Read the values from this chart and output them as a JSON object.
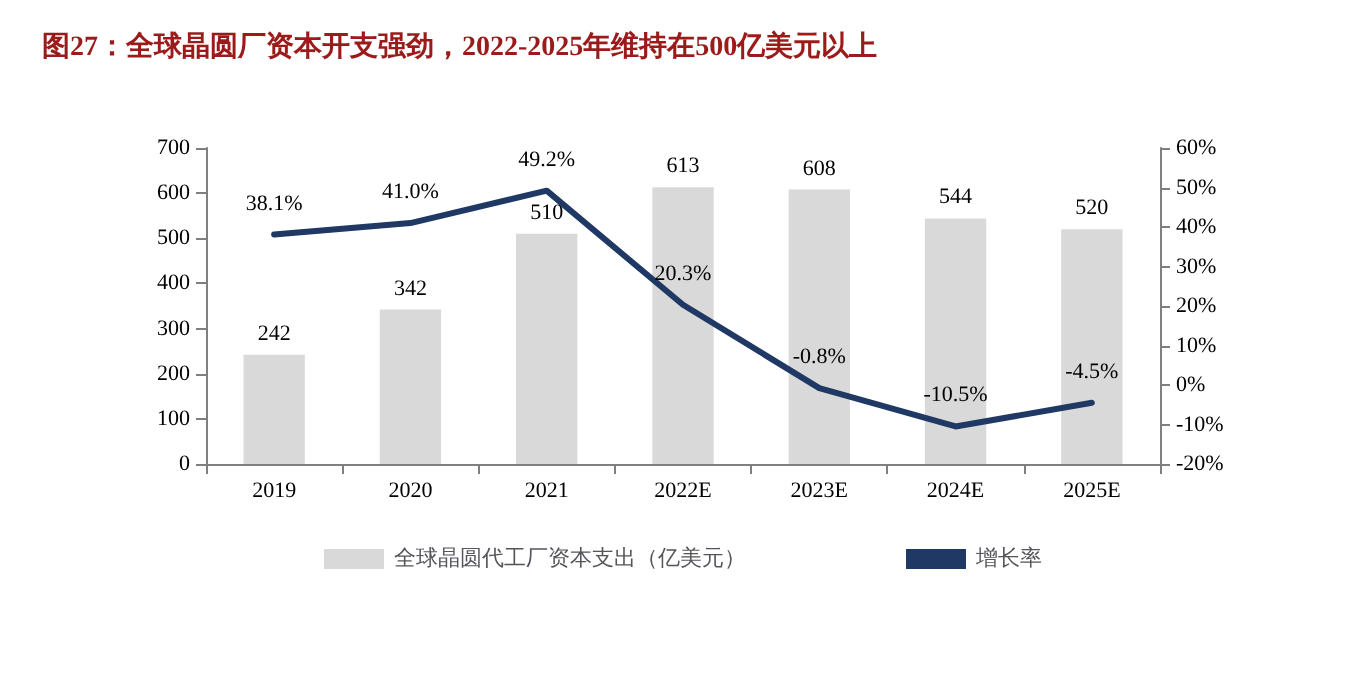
{
  "chart_data": {
    "type": "bar",
    "title": "图27：全球晶圆厂资本开支强劲，2022-2025年维持在500亿美元以上",
    "categories": [
      "2019",
      "2020",
      "2021",
      "2022E",
      "2023E",
      "2024E",
      "2025E"
    ],
    "series": [
      {
        "name": "全球晶圆代工厂资本支出（亿美元）",
        "color": "#d9d9d9",
        "values": [
          242,
          342,
          510,
          613,
          608,
          544,
          520
        ],
        "data_labels": true
      },
      {
        "name": "增长率",
        "type": "line",
        "axis": "y2",
        "color": "#1f3864",
        "values": [
          38.1,
          41.0,
          49.2,
          20.3,
          -0.8,
          -10.5,
          -4.5
        ],
        "value_labels": [
          "38.1%",
          "41.0%",
          "49.2%",
          "20.3%",
          "-0.8%",
          "-10.5%",
          "-4.5%"
        ]
      }
    ],
    "ylim": [
      0,
      700
    ],
    "yticks": [
      0,
      100,
      200,
      300,
      400,
      500,
      600,
      700
    ],
    "y2lim": [
      -20,
      60
    ],
    "y2ticks": [
      {
        "value": -20,
        "label": "-20%"
      },
      {
        "value": -10,
        "label": "-10%"
      },
      {
        "value": 0,
        "label": "0%"
      },
      {
        "value": 10,
        "label": "10%"
      },
      {
        "value": 20,
        "label": "20%"
      },
      {
        "value": 30,
        "label": "30%"
      },
      {
        "value": 40,
        "label": "40%"
      },
      {
        "value": 50,
        "label": "50%"
      },
      {
        "value": 60,
        "label": "60%"
      }
    ],
    "grid": false,
    "legend": "bottom",
    "marker": "none",
    "line_style": "solid"
  }
}
